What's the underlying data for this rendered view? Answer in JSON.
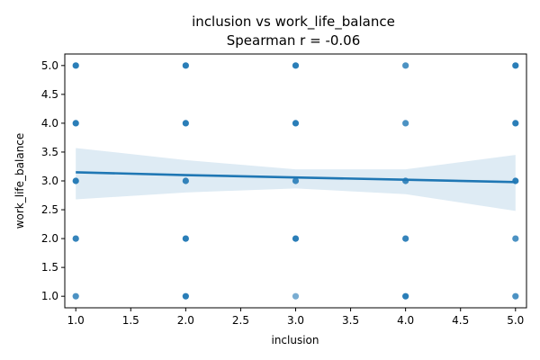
{
  "chart_data": {
    "type": "scatter",
    "title": "inclusion vs work_life_balance",
    "subtitle": "Spearman r = -0.06",
    "xlabel": "inclusion",
    "ylabel": "work_life_balance",
    "xlim": [
      0.9,
      5.1
    ],
    "ylim": [
      0.8,
      5.2
    ],
    "x_ticks": [
      "1.0",
      "1.5",
      "2.0",
      "2.5",
      "3.0",
      "3.5",
      "4.0",
      "4.5",
      "5.0"
    ],
    "y_ticks": [
      "1.0",
      "1.5",
      "2.0",
      "2.5",
      "3.0",
      "3.5",
      "4.0",
      "4.5",
      "5.0"
    ],
    "grid": false,
    "colors": {
      "points": "#1f77b4",
      "line": "#1f77b4",
      "band": "#1f77b4"
    },
    "points": [
      [
        1,
        1
      ],
      [
        1,
        2
      ],
      [
        1,
        3
      ],
      [
        1,
        4
      ],
      [
        1,
        5
      ],
      [
        2,
        1
      ],
      [
        2,
        2
      ],
      [
        2,
        3
      ],
      [
        2,
        4
      ],
      [
        2,
        5
      ],
      [
        3,
        1
      ],
      [
        3,
        2
      ],
      [
        3,
        3
      ],
      [
        3,
        4
      ],
      [
        3,
        5
      ],
      [
        4,
        1
      ],
      [
        4,
        2
      ],
      [
        4,
        3
      ],
      [
        4,
        4
      ],
      [
        4,
        5
      ],
      [
        5,
        1
      ],
      [
        5,
        2
      ],
      [
        5,
        3
      ],
      [
        5,
        4
      ],
      [
        5,
        5
      ]
    ],
    "point_opacity": [
      0.8,
      0.9,
      0.95,
      0.95,
      0.95,
      0.95,
      0.95,
      0.9,
      0.95,
      0.95,
      0.6,
      0.95,
      0.85,
      0.95,
      0.95,
      0.95,
      0.9,
      0.85,
      0.8,
      0.8,
      0.8,
      0.8,
      0.95,
      0.95,
      0.95
    ],
    "regression": {
      "x": [
        1.0,
        2.0,
        3.0,
        4.0,
        5.0
      ],
      "y": [
        3.15,
        3.1,
        3.06,
        3.02,
        2.98
      ],
      "ci_upper": [
        3.57,
        3.36,
        3.2,
        3.2,
        3.45
      ],
      "ci_lower": [
        2.68,
        2.8,
        2.87,
        2.77,
        2.48
      ]
    }
  }
}
